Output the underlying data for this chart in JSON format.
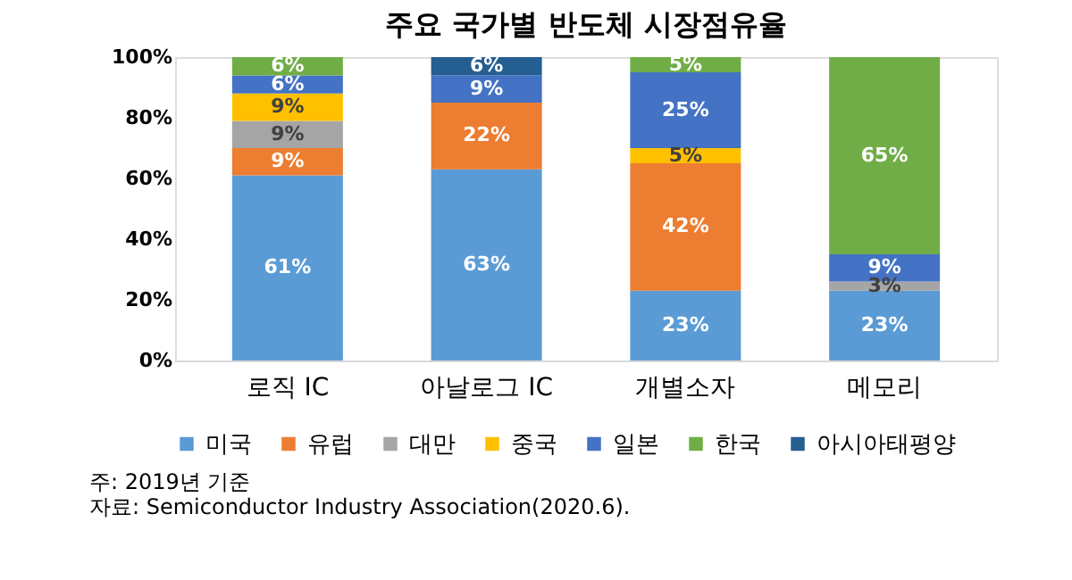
{
  "chart_data": {
    "type": "bar",
    "title": "주요 국가별 반도체 시장점유율",
    "stacked": true,
    "categories": [
      "로직 IC",
      "아날로그 IC",
      "개별소자",
      "메모리"
    ],
    "series": [
      {
        "name": "미국",
        "color": "#5b9bd5",
        "values": [
          61,
          63,
          23,
          23
        ],
        "value_labels": [
          "61%",
          "63%",
          "23%",
          "23%"
        ]
      },
      {
        "name": "유럽",
        "color": "#ed7d31",
        "values": [
          9,
          22,
          42,
          null
        ],
        "value_labels": [
          "9%",
          "22%",
          "42%",
          null
        ]
      },
      {
        "name": "대만",
        "color": "#a5a5a5",
        "values": [
          9,
          null,
          null,
          3
        ],
        "value_labels": [
          "9%",
          null,
          null,
          "3%"
        ]
      },
      {
        "name": "중국",
        "color": "#ffc000",
        "values": [
          9,
          null,
          5,
          null
        ],
        "value_labels": [
          "9%",
          null,
          "5%",
          null
        ]
      },
      {
        "name": "일본",
        "color": "#4472c4",
        "values": [
          6,
          9,
          25,
          9
        ],
        "value_labels": [
          "6%",
          "9%",
          "25%",
          "9%"
        ]
      },
      {
        "name": "한국",
        "color": "#70ad47",
        "values": [
          6,
          null,
          5,
          65
        ],
        "value_labels": [
          "6%",
          null,
          "5%",
          "65%"
        ]
      },
      {
        "name": "아시아태평양",
        "color": "#255e91",
        "values": [
          null,
          6,
          null,
          null
        ],
        "value_labels": [
          null,
          "6%",
          null,
          null
        ]
      }
    ],
    "ylim": [
      0,
      100
    ],
    "yticks": [
      {
        "value": 0,
        "label": "0%"
      },
      {
        "value": 20,
        "label": "20%"
      },
      {
        "value": 40,
        "label": "40%"
      },
      {
        "value": 60,
        "label": "60%"
      },
      {
        "value": 80,
        "label": "80%"
      },
      {
        "value": 100,
        "label": "100%"
      }
    ],
    "legend": "bottom",
    "annotations": [
      "주: 2019년 기준",
      "자료: Semiconductor Industry Association(2020.6)."
    ]
  }
}
